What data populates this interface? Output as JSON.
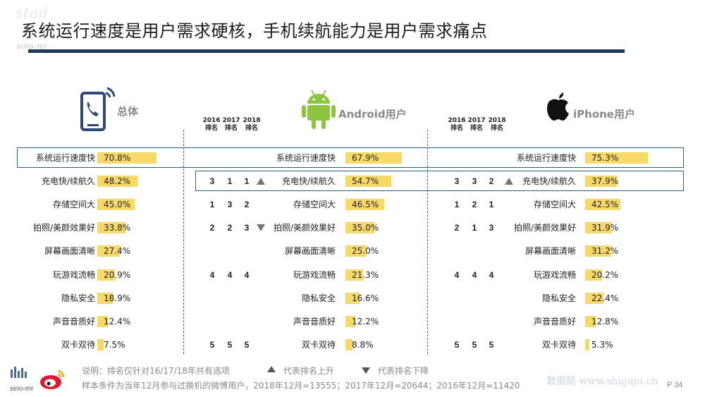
{
  "header": {
    "title": "系统运行速度是用户需求硬核，手机续航能力是用户需求痛点",
    "watermark_top": "stad",
    "watermark_sub": "sino-mr"
  },
  "groups": [
    {
      "key": "overall",
      "label": "总体",
      "icon": "phone-call-icon"
    },
    {
      "key": "android",
      "label": "Android用户",
      "icon": "android-icon"
    },
    {
      "key": "iphone",
      "label": "iPhone用户",
      "icon": "apple-icon"
    }
  ],
  "year_headers": [
    {
      "year": "2016",
      "sub": "排名"
    },
    {
      "year": "2017",
      "sub": "排名"
    },
    {
      "year": "2018",
      "sub": "排名"
    }
  ],
  "chart_data": [
    {
      "type": "bar",
      "title": "总体",
      "categories": [
        "系统运行速度快",
        "充电快/续航久",
        "存储空间大",
        "拍照/美颜效果好",
        "屏幕画面清晰",
        "玩游戏流畅",
        "隐私安全",
        "声音音质好",
        "双卡双待"
      ],
      "values": [
        70.8,
        48.2,
        45.0,
        33.8,
        27.4,
        20.9,
        18.9,
        12.4,
        7.5
      ],
      "value_labels": [
        "70.8%",
        "48.2%",
        "45.0%",
        "33.8%",
        "27.4%",
        "20.9%",
        "18.9%",
        "12.4%",
        "7.5%"
      ],
      "ylim": [
        0,
        100
      ]
    },
    {
      "type": "bar",
      "title": "Android用户",
      "categories": [
        "系统运行速度快",
        "充电快/续航久",
        "存储空间大",
        "拍照/美颜效果好",
        "屏幕画面清晰",
        "玩游戏流畅",
        "隐私安全",
        "声音音质好",
        "双卡双待"
      ],
      "values": [
        67.9,
        54.7,
        46.5,
        35.0,
        25.0,
        21.3,
        16.6,
        12.2,
        8.8
      ],
      "value_labels": [
        "67.9%",
        "54.7%",
        "46.5%",
        "35.0%",
        "25.0%",
        "21.3%",
        "16.6%",
        "12.2%",
        "8.8%"
      ],
      "ylim": [
        0,
        100
      ],
      "ranks": [
        null,
        {
          "r2016": "3",
          "r2017": "1",
          "r2018": "1",
          "trend": "up"
        },
        {
          "r2016": "1",
          "r2017": "3",
          "r2018": "2",
          "trend": null
        },
        {
          "r2016": "2",
          "r2017": "2",
          "r2018": "3",
          "trend": "down"
        },
        null,
        {
          "r2016": "4",
          "r2017": "4",
          "r2018": "4",
          "trend": null
        },
        null,
        null,
        {
          "r2016": "5",
          "r2017": "5",
          "r2018": "5",
          "trend": null
        }
      ]
    },
    {
      "type": "bar",
      "title": "iPhone用户",
      "categories": [
        "系统运行速度快",
        "充电快/续航久",
        "存储空间大",
        "拍照/美颜效果好",
        "屏幕画面清晰",
        "玩游戏流畅",
        "隐私安全",
        "声音音质好",
        "双卡双待"
      ],
      "values": [
        75.3,
        37.9,
        42.5,
        31.9,
        31.2,
        20.2,
        22.4,
        12.8,
        5.3
      ],
      "value_labels": [
        "75.3%",
        "37.9%",
        "42.5%",
        "31.9%",
        "31.2%",
        "20.2%",
        "22.4%",
        "12.8%",
        "5.3%"
      ],
      "ylim": [
        0,
        100
      ],
      "ranks": [
        null,
        {
          "r2016": "3",
          "r2017": "3",
          "r2018": "2",
          "trend": "up"
        },
        {
          "r2016": "1",
          "r2017": "2",
          "r2018": "1",
          "trend": null
        },
        {
          "r2016": "2",
          "r2017": "1",
          "r2018": "3",
          "trend": null
        },
        null,
        {
          "r2016": "4",
          "r2017": "4",
          "r2018": "4",
          "trend": null
        },
        null,
        null,
        {
          "r2016": "5",
          "r2017": "5",
          "r2018": "5",
          "trend": null
        }
      ]
    }
  ],
  "notes": {
    "explain": "说明：排名仅针对16/17/18年共有选项",
    "legend_up": "代表排名上升",
    "legend_down": "代表排名下降",
    "sample": "样本条件为当年12月参与过换机的微博用户，2018年12月=13555；2017年12月=20644；2016年12月=11420"
  },
  "footer": {
    "logo_text": "sino-mr",
    "site_watermark": "数据局 www.shujuju.cn",
    "page": "P 34"
  },
  "colors": {
    "bar": "#f7d96a",
    "rule": "#1f3a5f",
    "box": "#2c5f8a",
    "android": "#8cc63f",
    "icon_blue": "#2b4a7a"
  }
}
